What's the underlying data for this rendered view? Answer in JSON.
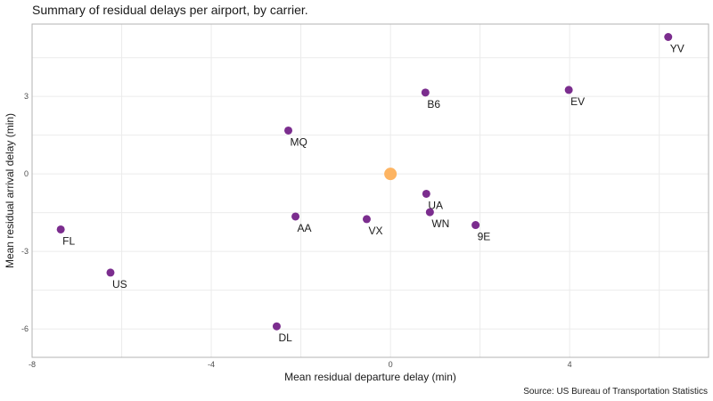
{
  "chart_data": {
    "type": "scatter",
    "title": "Summary of residual delays per airport, by carrier.",
    "xlabel": "Mean residual departure delay (min)",
    "ylabel": "Mean residual arrival delay (min)",
    "caption": "Source: US Bureau of Transportation Statistics",
    "xlim": [
      -8,
      7.1
    ],
    "ylim": [
      -7.1,
      5.8
    ],
    "x_ticks": [
      -8,
      -4,
      0,
      4
    ],
    "y_ticks": [
      -6,
      -3,
      0,
      3
    ],
    "grid": true,
    "colors": {
      "point": "#7b2d8e",
      "highlight": "#fdb462",
      "grid": "#ebebeb",
      "border": "#b3b3b3"
    },
    "points": [
      {
        "label": "YV",
        "x": 6.2,
        "y": 5.3
      },
      {
        "label": "B6",
        "x": 0.78,
        "y": 3.15
      },
      {
        "label": "EV",
        "x": 3.98,
        "y": 3.25
      },
      {
        "label": "MQ",
        "x": -2.28,
        "y": 1.68
      },
      {
        "label": "UA",
        "x": 0.8,
        "y": -0.77
      },
      {
        "label": "WN",
        "x": 0.88,
        "y": -1.48
      },
      {
        "label": "9E",
        "x": 1.9,
        "y": -1.98
      },
      {
        "label": "AA",
        "x": -2.12,
        "y": -1.65
      },
      {
        "label": "VX",
        "x": -0.53,
        "y": -1.75
      },
      {
        "label": "FL",
        "x": -7.36,
        "y": -2.15
      },
      {
        "label": "US",
        "x": -6.25,
        "y": -3.82
      },
      {
        "label": "DL",
        "x": -2.54,
        "y": -5.9
      }
    ],
    "highlight_point": {
      "x": 0,
      "y": 0
    }
  }
}
